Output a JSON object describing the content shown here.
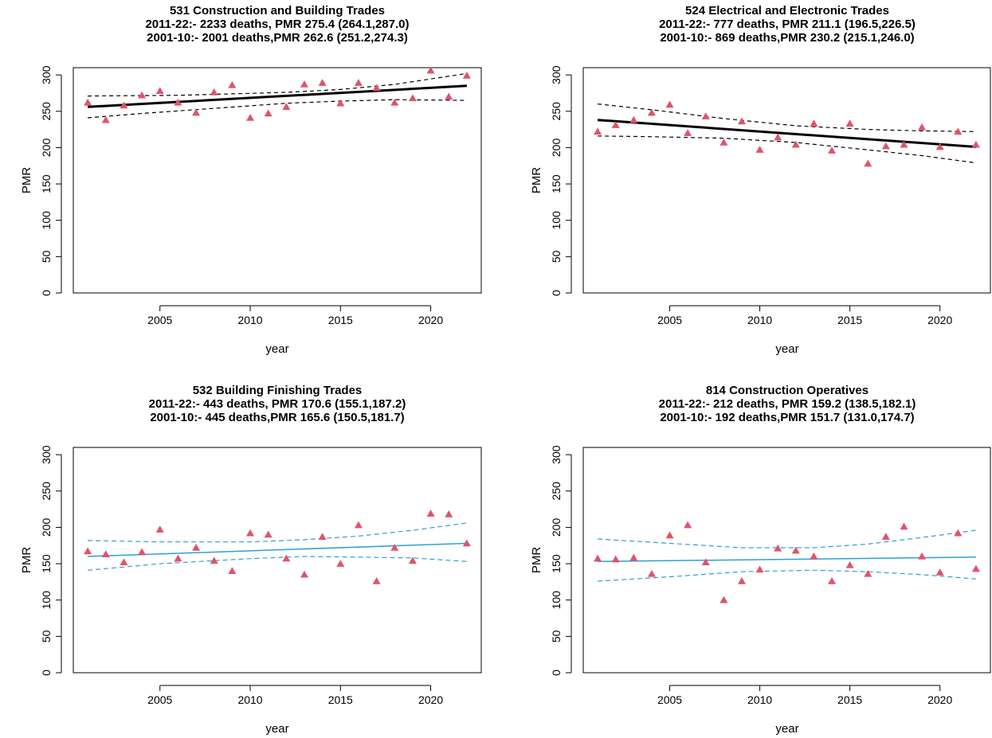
{
  "chart_data": [
    {
      "type": "scatter",
      "title_lines": [
        "531 Construction and Building Trades",
        "2011-22:- 2233 deaths, PMR 275.4 (264.1,287.0)",
        "2001-10:- 2001 deaths,PMR 262.6 (251.2,274.3)"
      ],
      "xlabel": "year",
      "ylabel": "PMR",
      "xlim": [
        2000.2,
        2022.8
      ],
      "ylim": [
        0,
        310
      ],
      "x_ticks": [
        "2005",
        "2010",
        "2015",
        "2020"
      ],
      "y_ticks": [
        "0",
        "50",
        "100",
        "150",
        "200",
        "250",
        "300"
      ],
      "point_color": "#df536b",
      "fit_color": "#000000",
      "fit_style": "bold",
      "x": [
        2001,
        2002,
        2003,
        2004,
        2005,
        2006,
        2007,
        2008,
        2009,
        2010,
        2011,
        2012,
        2013,
        2014,
        2015,
        2016,
        2017,
        2018,
        2019,
        2020,
        2021,
        2022
      ],
      "values": [
        262,
        238,
        258,
        272,
        278,
        262,
        248,
        276,
        286,
        241,
        247,
        256,
        287,
        289,
        261,
        289,
        282,
        262,
        268,
        306,
        270,
        299
      ],
      "fit": [
        [
          2001,
          256
        ],
        [
          2022,
          285
        ]
      ],
      "ci_upper": [
        [
          2001,
          271
        ],
        [
          2006,
          272
        ],
        [
          2009,
          274
        ],
        [
          2012,
          276
        ],
        [
          2015,
          280
        ],
        [
          2018,
          287
        ],
        [
          2022,
          302
        ]
      ],
      "ci_lower": [
        [
          2001,
          241
        ],
        [
          2004,
          247
        ],
        [
          2008,
          254
        ],
        [
          2012,
          261
        ],
        [
          2015,
          264
        ],
        [
          2018,
          266
        ],
        [
          2022,
          265
        ]
      ]
    },
    {
      "type": "scatter",
      "title_lines": [
        "524 Electrical and Electronic Trades",
        "2011-22:- 777 deaths, PMR 211.1 (196.5,226.5)",
        "2001-10:- 869 deaths,PMR 230.2 (215.1,246.0)"
      ],
      "xlabel": "year",
      "ylabel": "PMR",
      "xlim": [
        2000.2,
        2022.8
      ],
      "ylim": [
        0,
        310
      ],
      "x_ticks": [
        "2005",
        "2010",
        "2015",
        "2020"
      ],
      "y_ticks": [
        "0",
        "50",
        "100",
        "150",
        "200",
        "250",
        "300"
      ],
      "point_color": "#df536b",
      "fit_color": "#000000",
      "fit_style": "bold",
      "x": [
        2001,
        2002,
        2003,
        2004,
        2005,
        2006,
        2007,
        2008,
        2009,
        2010,
        2011,
        2012,
        2013,
        2014,
        2015,
        2016,
        2017,
        2018,
        2019,
        2020,
        2021,
        2022
      ],
      "values": [
        222,
        231,
        238,
        248,
        259,
        220,
        243,
        207,
        236,
        197,
        214,
        204,
        233,
        196,
        233,
        178,
        202,
        204,
        228,
        201,
        222,
        204
      ],
      "fit": [
        [
          2001,
          238
        ],
        [
          2022,
          201
        ]
      ],
      "ci_upper": [
        [
          2001,
          260
        ],
        [
          2004,
          252
        ],
        [
          2008,
          240
        ],
        [
          2012,
          230
        ],
        [
          2016,
          225
        ],
        [
          2019,
          223
        ],
        [
          2022,
          222
        ]
      ],
      "ci_lower": [
        [
          2001,
          216
        ],
        [
          2004,
          215
        ],
        [
          2008,
          213
        ],
        [
          2012,
          207
        ],
        [
          2016,
          197
        ],
        [
          2019,
          189
        ],
        [
          2022,
          179
        ]
      ]
    },
    {
      "type": "scatter",
      "title_lines": [
        "532 Building Finishing Trades",
        "2011-22:- 443 deaths, PMR 170.6 (155.1,187.2)",
        "2001-10:- 445 deaths,PMR 165.6 (150.5,181.7)"
      ],
      "xlabel": "year",
      "ylabel": "PMR",
      "xlim": [
        2000.2,
        2022.8
      ],
      "ylim": [
        0,
        310
      ],
      "x_ticks": [
        "2005",
        "2010",
        "2015",
        "2020"
      ],
      "y_ticks": [
        "0",
        "50",
        "100",
        "150",
        "200",
        "250",
        "300"
      ],
      "point_color": "#df536b",
      "fit_color": "#2e9fd6",
      "fit_style": "thin",
      "x": [
        2001,
        2002,
        2003,
        2004,
        2005,
        2006,
        2007,
        2008,
        2009,
        2010,
        2011,
        2012,
        2013,
        2014,
        2015,
        2016,
        2017,
        2018,
        2019,
        2020,
        2021,
        2022
      ],
      "values": [
        167,
        163,
        152,
        166,
        197,
        157,
        172,
        154,
        140,
        192,
        190,
        157,
        135,
        187,
        150,
        203,
        126,
        172,
        154,
        219,
        218,
        178
      ],
      "fit": [
        [
          2001,
          160
        ],
        [
          2022,
          178
        ]
      ],
      "ci_upper": [
        [
          2001,
          182
        ],
        [
          2005,
          180
        ],
        [
          2010,
          180
        ],
        [
          2013,
          183
        ],
        [
          2016,
          188
        ],
        [
          2019,
          196
        ],
        [
          2022,
          206
        ]
      ],
      "ci_lower": [
        [
          2001,
          141
        ],
        [
          2005,
          150
        ],
        [
          2010,
          157
        ],
        [
          2013,
          160
        ],
        [
          2016,
          159
        ],
        [
          2019,
          158
        ],
        [
          2022,
          153
        ]
      ]
    },
    {
      "type": "scatter",
      "title_lines": [
        "814 Construction Operatives",
        "2011-22:- 212 deaths, PMR 159.2 (138.5,182.1)",
        "2001-10:- 192 deaths,PMR 151.7 (131.0,174.7)"
      ],
      "xlabel": "year",
      "ylabel": "PMR",
      "xlim": [
        2000.2,
        2022.8
      ],
      "ylim": [
        0,
        310
      ],
      "x_ticks": [
        "2005",
        "2010",
        "2015",
        "2020"
      ],
      "y_ticks": [
        "0",
        "50",
        "100",
        "150",
        "200",
        "250",
        "300"
      ],
      "point_color": "#df536b",
      "fit_color": "#2e9fd6",
      "fit_style": "thin",
      "x": [
        2001,
        2002,
        2003,
        2004,
        2005,
        2006,
        2007,
        2008,
        2009,
        2010,
        2011,
        2012,
        2013,
        2014,
        2015,
        2016,
        2017,
        2018,
        2019,
        2020,
        2021,
        2022
      ],
      "values": [
        157,
        156,
        158,
        136,
        189,
        203,
        152,
        100,
        126,
        142,
        171,
        168,
        160,
        126,
        148,
        136,
        187,
        201,
        160,
        138,
        192,
        143
      ],
      "fit": [
        [
          2001,
          153
        ],
        [
          2022,
          159
        ]
      ],
      "ci_upper": [
        [
          2001,
          184
        ],
        [
          2005,
          178
        ],
        [
          2009,
          172
        ],
        [
          2013,
          172
        ],
        [
          2016,
          177
        ],
        [
          2019,
          186
        ],
        [
          2022,
          196
        ]
      ],
      "ci_lower": [
        [
          2001,
          126
        ],
        [
          2005,
          132
        ],
        [
          2009,
          139
        ],
        [
          2013,
          141
        ],
        [
          2016,
          139
        ],
        [
          2019,
          135
        ],
        [
          2022,
          129
        ]
      ]
    }
  ]
}
